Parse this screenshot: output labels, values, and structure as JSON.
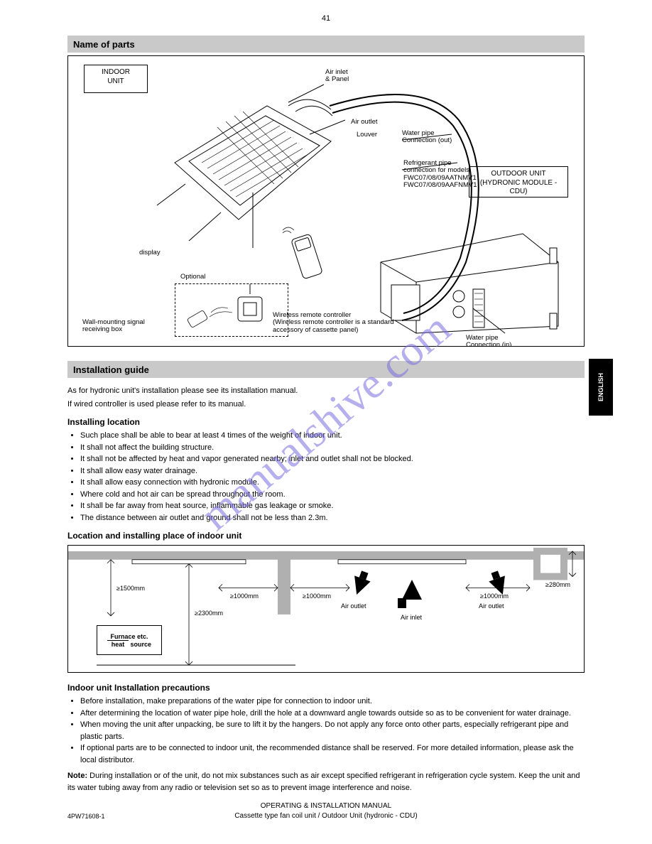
{
  "page_top_number": "41",
  "section1_title": "Name of parts",
  "indoor_box": "INDOOR\nUNIT",
  "outdoor_box": "OUTDOOR UNIT\n(HYDRONIC MODULE -\nCDU)",
  "labels": {
    "air_inlet_panel": "Air inlet\n& Panel",
    "air_outlet": "Air outlet",
    "louver": "Louver",
    "display": "display",
    "water_pipe_out": "Water pipe\nConnection (out)",
    "refrigerant_ab": "Refrigerant pipe\nconnection for models\nFWC07/08/09AATNMV1\nFWC07/08/09AAFNMV1",
    "optional": "Optional",
    "wall_signal": "Wall-mounting signal\nreceiving box",
    "wireless": "Wireless remote controller\n(Wireless remote controller is a standard\naccessory of cassette panel)",
    "water_pipe_in": "Water pipe\nConnection (in)"
  },
  "section2_title": "Installation guide",
  "intro_p1": "As for hydronic unit's installation please see its installation manual.",
  "intro_p2": "If wired controller is used please refer to its manual.",
  "install_loc_title": "Installing location",
  "bullets": [
    "Such place shall be able to bear at least 4 times of the weight of indoor unit.",
    "It shall not affect the building structure.",
    "It shall not be affected by heat and vapor generated nearby; inlet and outlet shall not be blocked.",
    "It shall allow easy water drainage.",
    "It shall allow easy connection with hydronic module.",
    "Where cold and hot air can be spread throughout the room.",
    "It shall be far away from heat source, inflammable gas leakage or smoke.",
    "The distance between air outlet and ground shall not be less than 2.3m."
  ],
  "install_diagram_title": "Location and installing place of indoor unit",
  "measures": {
    "ge1500": "≥1500mm",
    "ge2300": "≥2300mm",
    "ge1000": "≥1000mm",
    "air_out": "Air outlet",
    "air_in": "Air inlet",
    "ge280": "≥280mm"
  },
  "heat_label": {
    "line1": "Furnace etc.",
    "line2_prefix": "heat",
    "line2_suffix": "source"
  },
  "precautions_title": "Indoor unit Installation precautions",
  "prec": [
    "Before installation, make preparations of the water pipe for connection to indoor unit.",
    "After determining the location of water pipe hole, drill the hole at a downward angle towards outside so as to be convenient for water drainage.",
    "When moving the unit after unpacking, be sure to lift it by the hangers. Do not apply any force onto other parts, especially refrigerant pipe and plastic parts.",
    "If optional parts are to be connected to indoor unit, the recommended distance shall be reserved. For more detailed information, please ask the local distributor."
  ],
  "note": "Note: During installation or of the unit, do not mix substances such as air except specified refrigerant in refrigeration cycle system. Keep the unit and its water tubing away from any radio or television set so as to prevent image interference and noise.",
  "footer1": "OPERATING & INSTALLATION MANUAL",
  "footer2": "Cassette type fan coil unit / Outdoor Unit (hydronic - CDU)",
  "footer3": "4PW71608-1",
  "colors": {
    "section_bg": "#c9c9c9",
    "watermark": "#7a6fe0"
  }
}
